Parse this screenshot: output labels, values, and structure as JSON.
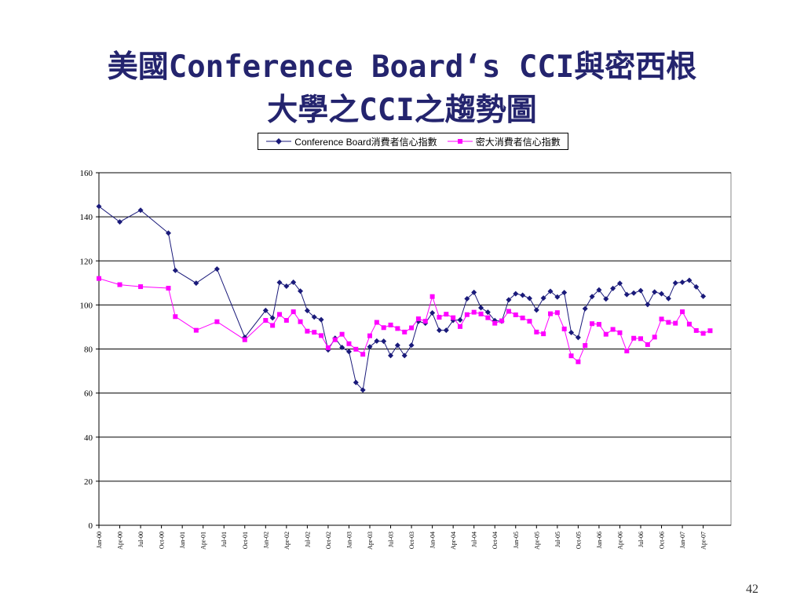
{
  "slide": {
    "title_line1": "美國Conference Board‘s CCI與密西根",
    "title_line2": "大學之CCI之趨勢圖",
    "page_number": "42"
  },
  "colors": {
    "series1": "#1a1a7a",
    "series2": "#ff00ff",
    "title": "#24246e"
  },
  "chart_data": {
    "type": "line",
    "title": "",
    "xlabel": "",
    "ylabel": "",
    "ylim": [
      0,
      160
    ],
    "yticks": [
      0,
      20,
      40,
      60,
      80,
      100,
      120,
      140,
      160
    ],
    "grid": "horizontal",
    "legend_position": "top",
    "x_range": [
      "Jan-00",
      "Aug-07"
    ],
    "x_tick_labels": [
      "Jan-00",
      "Apr-00",
      "Jul-00",
      "Oct-00",
      "Jan-01",
      "Apr-01",
      "Jul-01",
      "Oct-01",
      "Jan-02",
      "Apr-02",
      "Jul-02",
      "Oct-02",
      "Jan-03",
      "Apr-03",
      "Jul-03",
      "Oct-03",
      "Jan-04",
      "Apr-04",
      "Jul-04",
      "Oct-04",
      "Jan-05",
      "Apr-05",
      "Jul-05",
      "Oct-05",
      "Jan-06",
      "Apr-06",
      "Jul-06",
      "Oct-06",
      "Jan-07",
      "Apr-07"
    ],
    "series": [
      {
        "name": "Conference Board消費者信心指數",
        "marker": "diamond",
        "points": [
          [
            "2000-01",
            144.7
          ],
          [
            "2000-04",
            137.7
          ],
          [
            "2000-07",
            143.0
          ],
          [
            "2000-11",
            132.6
          ],
          [
            "2000-12",
            115.7
          ],
          [
            "2001-03",
            109.9
          ],
          [
            "2001-06",
            116.3
          ],
          [
            "2001-10",
            85.3
          ],
          [
            "2002-01",
            97.5
          ],
          [
            "2002-02",
            94.1
          ],
          [
            "2002-03",
            110.2
          ],
          [
            "2002-04",
            108.5
          ],
          [
            "2002-05",
            110.3
          ],
          [
            "2002-06",
            106.3
          ],
          [
            "2002-07",
            97.4
          ],
          [
            "2002-08",
            94.5
          ],
          [
            "2002-09",
            93.3
          ],
          [
            "2002-10",
            79.6
          ],
          [
            "2002-11",
            84.9
          ],
          [
            "2002-12",
            80.7
          ],
          [
            "2003-01",
            78.8
          ],
          [
            "2003-02",
            64.8
          ],
          [
            "2003-03",
            61.4
          ],
          [
            "2003-04",
            81.0
          ],
          [
            "2003-05",
            83.6
          ],
          [
            "2003-06",
            83.5
          ],
          [
            "2003-07",
            77.0
          ],
          [
            "2003-08",
            81.7
          ],
          [
            "2003-09",
            77.0
          ],
          [
            "2003-10",
            81.7
          ],
          [
            "2003-11",
            92.5
          ],
          [
            "2003-12",
            91.7
          ],
          [
            "2004-01",
            96.4
          ],
          [
            "2004-02",
            88.5
          ],
          [
            "2004-03",
            88.5
          ],
          [
            "2004-04",
            93.0
          ],
          [
            "2004-05",
            93.2
          ],
          [
            "2004-06",
            102.8
          ],
          [
            "2004-07",
            105.7
          ],
          [
            "2004-08",
            98.7
          ],
          [
            "2004-09",
            96.7
          ],
          [
            "2004-10",
            92.9
          ],
          [
            "2004-11",
            92.6
          ],
          [
            "2004-12",
            102.3
          ],
          [
            "2005-01",
            105.1
          ],
          [
            "2005-02",
            104.4
          ],
          [
            "2005-03",
            103.0
          ],
          [
            "2005-04",
            97.7
          ],
          [
            "2005-05",
            103.1
          ],
          [
            "2005-06",
            106.2
          ],
          [
            "2005-07",
            103.6
          ],
          [
            "2005-08",
            105.6
          ],
          [
            "2005-09",
            87.5
          ],
          [
            "2005-10",
            85.2
          ],
          [
            "2005-11",
            98.3
          ],
          [
            "2005-12",
            103.8
          ],
          [
            "2006-01",
            106.8
          ],
          [
            "2006-02",
            102.7
          ],
          [
            "2006-03",
            107.5
          ],
          [
            "2006-04",
            109.8
          ],
          [
            "2006-05",
            104.7
          ],
          [
            "2006-06",
            105.4
          ],
          [
            "2006-07",
            106.5
          ],
          [
            "2006-08",
            100.2
          ],
          [
            "2006-09",
            105.9
          ],
          [
            "2006-10",
            105.1
          ],
          [
            "2006-11",
            102.9
          ],
          [
            "2006-12",
            110.0
          ],
          [
            "2007-01",
            110.3
          ],
          [
            "2007-02",
            111.2
          ],
          [
            "2007-03",
            108.2
          ],
          [
            "2007-04",
            103.9
          ]
        ]
      },
      {
        "name": "密大消費者信心指數",
        "marker": "square",
        "points": [
          [
            "2000-01",
            112.0
          ],
          [
            "2000-04",
            109.2
          ],
          [
            "2000-07",
            108.3
          ],
          [
            "2000-11",
            107.6
          ],
          [
            "2000-12",
            94.7
          ],
          [
            "2001-03",
            88.5
          ],
          [
            "2001-06",
            92.4
          ],
          [
            "2001-10",
            84.2
          ],
          [
            "2002-01",
            93.0
          ],
          [
            "2002-02",
            90.7
          ],
          [
            "2002-03",
            95.7
          ],
          [
            "2002-04",
            93.0
          ],
          [
            "2002-05",
            96.9
          ],
          [
            "2002-06",
            92.4
          ],
          [
            "2002-07",
            88.1
          ],
          [
            "2002-08",
            87.6
          ],
          [
            "2002-09",
            86.1
          ],
          [
            "2002-10",
            80.6
          ],
          [
            "2002-11",
            84.2
          ],
          [
            "2002-12",
            86.7
          ],
          [
            "2003-01",
            82.4
          ],
          [
            "2003-02",
            79.9
          ],
          [
            "2003-03",
            77.6
          ],
          [
            "2003-04",
            86.0
          ],
          [
            "2003-05",
            92.1
          ],
          [
            "2003-06",
            89.7
          ],
          [
            "2003-07",
            90.9
          ],
          [
            "2003-08",
            89.3
          ],
          [
            "2003-09",
            87.7
          ],
          [
            "2003-10",
            89.6
          ],
          [
            "2003-11",
            93.7
          ],
          [
            "2003-12",
            92.6
          ],
          [
            "2004-01",
            103.8
          ],
          [
            "2004-02",
            94.4
          ],
          [
            "2004-03",
            95.8
          ],
          [
            "2004-04",
            94.2
          ],
          [
            "2004-05",
            90.2
          ],
          [
            "2004-06",
            95.6
          ],
          [
            "2004-07",
            96.7
          ],
          [
            "2004-08",
            95.9
          ],
          [
            "2004-09",
            94.2
          ],
          [
            "2004-10",
            91.7
          ],
          [
            "2004-11",
            92.8
          ],
          [
            "2004-12",
            97.1
          ],
          [
            "2005-01",
            95.5
          ],
          [
            "2005-02",
            94.1
          ],
          [
            "2005-03",
            92.6
          ],
          [
            "2005-04",
            87.7
          ],
          [
            "2005-05",
            86.9
          ],
          [
            "2005-06",
            96.0
          ],
          [
            "2005-07",
            96.5
          ],
          [
            "2005-08",
            89.1
          ],
          [
            "2005-09",
            76.9
          ],
          [
            "2005-10",
            74.2
          ],
          [
            "2005-11",
            81.6
          ],
          [
            "2005-12",
            91.5
          ],
          [
            "2006-01",
            91.2
          ],
          [
            "2006-02",
            86.7
          ],
          [
            "2006-03",
            88.9
          ],
          [
            "2006-04",
            87.4
          ],
          [
            "2006-05",
            79.1
          ],
          [
            "2006-06",
            84.9
          ],
          [
            "2006-07",
            84.7
          ],
          [
            "2006-08",
            82.0
          ],
          [
            "2006-09",
            85.4
          ],
          [
            "2006-10",
            93.6
          ],
          [
            "2006-11",
            92.1
          ],
          [
            "2006-12",
            91.7
          ],
          [
            "2007-01",
            96.9
          ],
          [
            "2007-02",
            91.3
          ],
          [
            "2007-03",
            88.4
          ],
          [
            "2007-04",
            87.1
          ],
          [
            "2007-05",
            88.3
          ]
        ]
      }
    ]
  }
}
